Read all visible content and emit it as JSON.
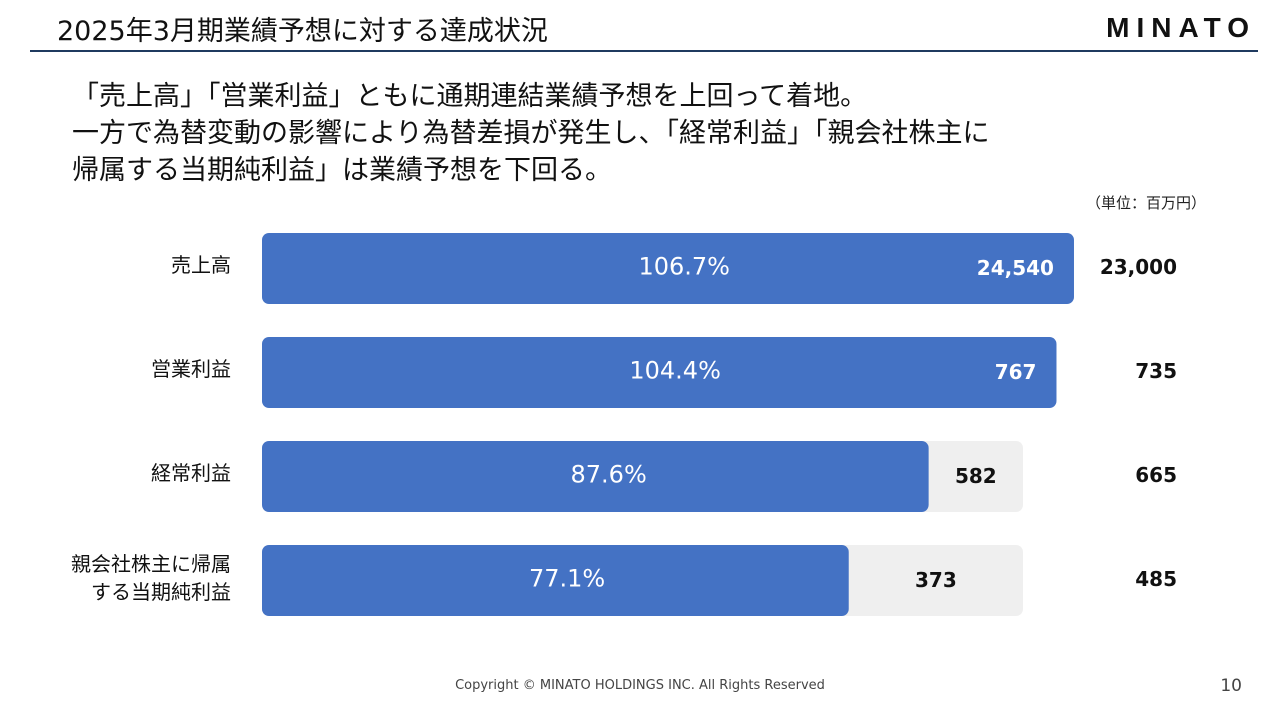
{
  "header": {
    "title": "2025年3月期業績予想に対する達成状況",
    "logo": "MINATO"
  },
  "lead": {
    "lines": [
      "「売上高」「営業利益」ともに通期連結業績予想を上回って着地。",
      "一方で為替変動の影響により為替差損が発生し、「経常利益」「親会社株主に",
      "帰属する当期純利益」は業績予想を下回る。"
    ]
  },
  "unit_note": "（単位：百万円）",
  "colors": {
    "bar_fill": "#4472c4",
    "track_fill": "#efefef",
    "title_rule": "#1f3a5f"
  },
  "chart_data": {
    "type": "bar",
    "orientation": "horizontal",
    "categories": [
      [
        "売上高"
      ],
      [
        "営業利益"
      ],
      [
        "経常利益"
      ],
      [
        "親会社株主に帰属",
        "する当期純利益"
      ]
    ],
    "series": [
      {
        "values": [
          24540,
          767,
          582,
          373
        ],
        "labels": [
          "24,540",
          "767",
          "582",
          "373"
        ]
      },
      {
        "values": [
          23000,
          735,
          665,
          485
        ],
        "labels": [
          "23,000",
          "735",
          "665",
          "485"
        ]
      }
    ],
    "achievement_rate": [
      "106.7%",
      "104.4%",
      "87.6%",
      "77.1%"
    ],
    "achievement_value": [
      106.7,
      104.4,
      87.6,
      77.1
    ]
  },
  "footer": {
    "copyright": "Copyright © MINATO HOLDINGS INC. All Rights Reserved",
    "page_number": "10"
  }
}
